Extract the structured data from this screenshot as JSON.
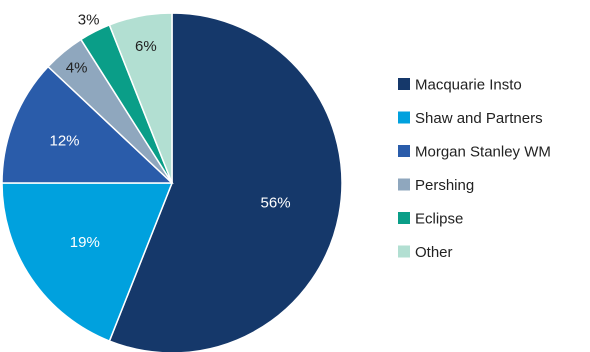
{
  "chart_data": {
    "type": "pie",
    "title": "",
    "legend_position": "right",
    "slices": [
      {
        "label": "Macquarie Insto",
        "value": 56,
        "value_label": "56%",
        "color": "#15386a",
        "label_color": "#ffffff"
      },
      {
        "label": "Shaw and Partners",
        "value": 19,
        "value_label": "19%",
        "color": "#00a1de",
        "label_color": "#ffffff"
      },
      {
        "label": "Morgan Stanley WM",
        "value": 12,
        "value_label": "12%",
        "color": "#2a5caa",
        "label_color": "#ffffff"
      },
      {
        "label": "Pershing",
        "value": 4,
        "value_label": "4%",
        "color": "#8fa7be",
        "label_color": "#222222"
      },
      {
        "label": "Eclipse",
        "value": 3,
        "value_label": "3%",
        "color": "#0a9e88",
        "label_color": "#222222"
      },
      {
        "label": "Other",
        "value": 6,
        "value_label": "6%",
        "color": "#b2dfd2",
        "label_color": "#222222"
      }
    ]
  }
}
